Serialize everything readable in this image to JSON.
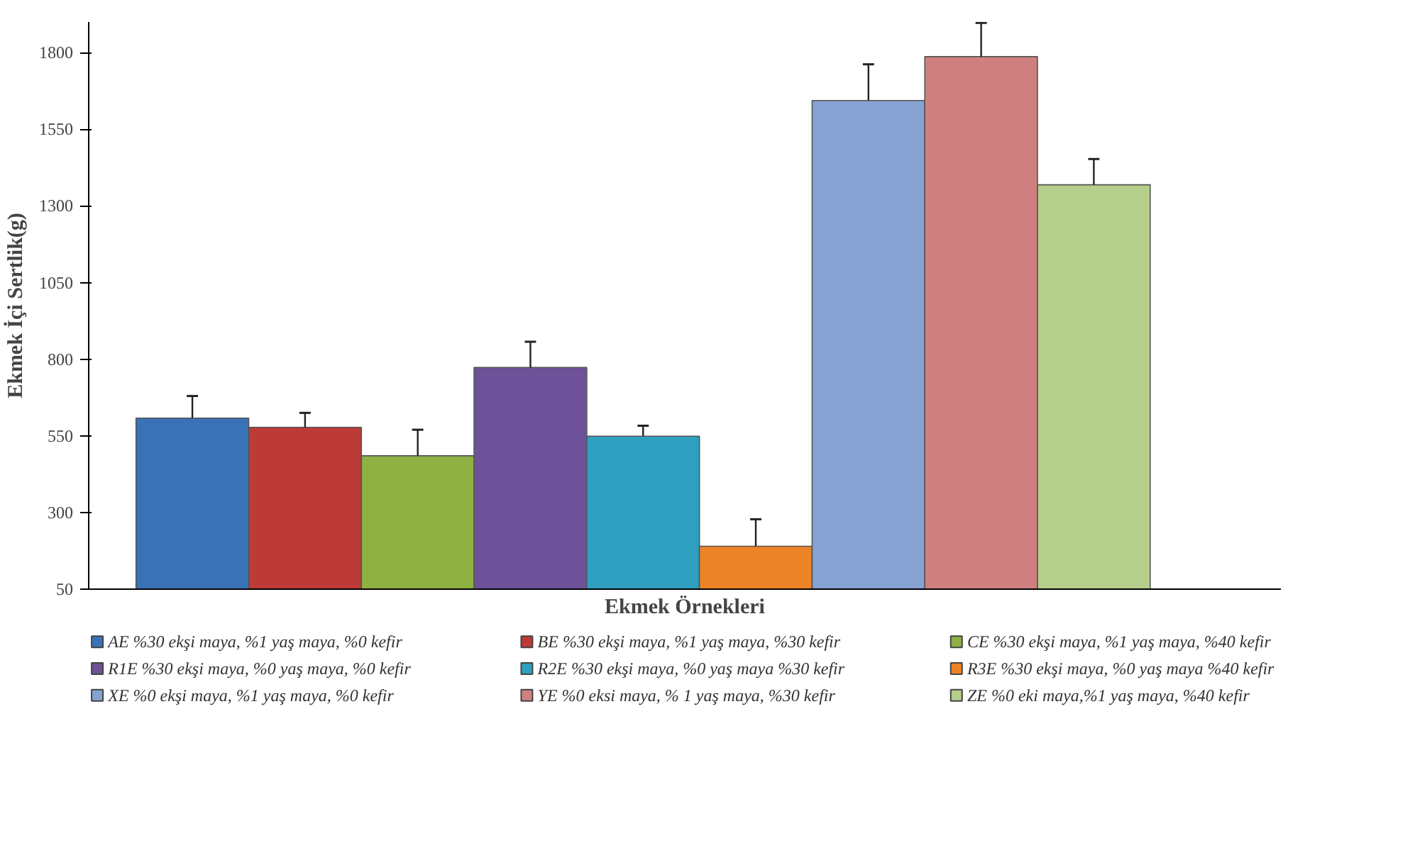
{
  "chart_data": {
    "type": "bar",
    "xlabel": "Ekmek Örnekleri",
    "ylabel": "Ekmek İçi Sertlik(g)",
    "categories": [
      null
    ],
    "ylim": [
      50,
      1900
    ],
    "yticks": [
      50,
      300,
      550,
      800,
      1050,
      1300,
      1550,
      1800
    ],
    "grid": false,
    "legend": "bottom",
    "series": [
      {
        "name": "AE %30 ekşi maya, %1 yaş maya, %0 kefir",
        "color": "#3a72b8",
        "values": [
          608
        ],
        "errors": [
          [
            608,
            680
          ]
        ]
      },
      {
        "name": "BE %30 ekşi maya, %1 yaş maya, %30 kefir",
        "color": "#bc3a38",
        "values": [
          578
        ],
        "errors": [
          [
            578,
            625
          ]
        ]
      },
      {
        "name": "CE %30 ekşi maya, %1 yaş maya, %40 kefir",
        "color": "#8fb043",
        "values": [
          485
        ],
        "errors": [
          [
            485,
            570
          ]
        ]
      },
      {
        "name": "R1E %30 ekşi maya, %0 yaş maya, %0 kefir",
        "color": "#6e5299",
        "values": [
          773
        ],
        "errors": [
          [
            773,
            857
          ]
        ]
      },
      {
        "name": "R2E %30 ekşi maya, %0 yaş maya %30 kefir",
        "color": "#2f9fbf",
        "values": [
          549
        ],
        "errors": [
          [
            549,
            583
          ]
        ]
      },
      {
        "name": "R3E %30 ekşi maya, %0 yaş maya %40 kefir",
        "color": "#ec8427",
        "values": [
          190
        ],
        "errors": [
          [
            190,
            278
          ]
        ]
      },
      {
        "name": "XE %0 ekşi maya, %1 yaş maya, %0 kefir",
        "color": "#86a2d2",
        "values": [
          1644
        ],
        "errors": [
          [
            1644,
            1762
          ]
        ]
      },
      {
        "name": "YE %0 eksi maya, % 1 yaş maya, %30 kefir",
        "color": "#cf7f7f",
        "values": [
          1787
        ],
        "errors": [
          [
            1787,
            1897
          ]
        ]
      },
      {
        "name": "ZE %0 eki maya,%1 yaş maya, %40 kefir",
        "color": "#b5cf8a",
        "values": [
          1369
        ],
        "errors": [
          [
            1369,
            1453
          ]
        ]
      }
    ]
  }
}
